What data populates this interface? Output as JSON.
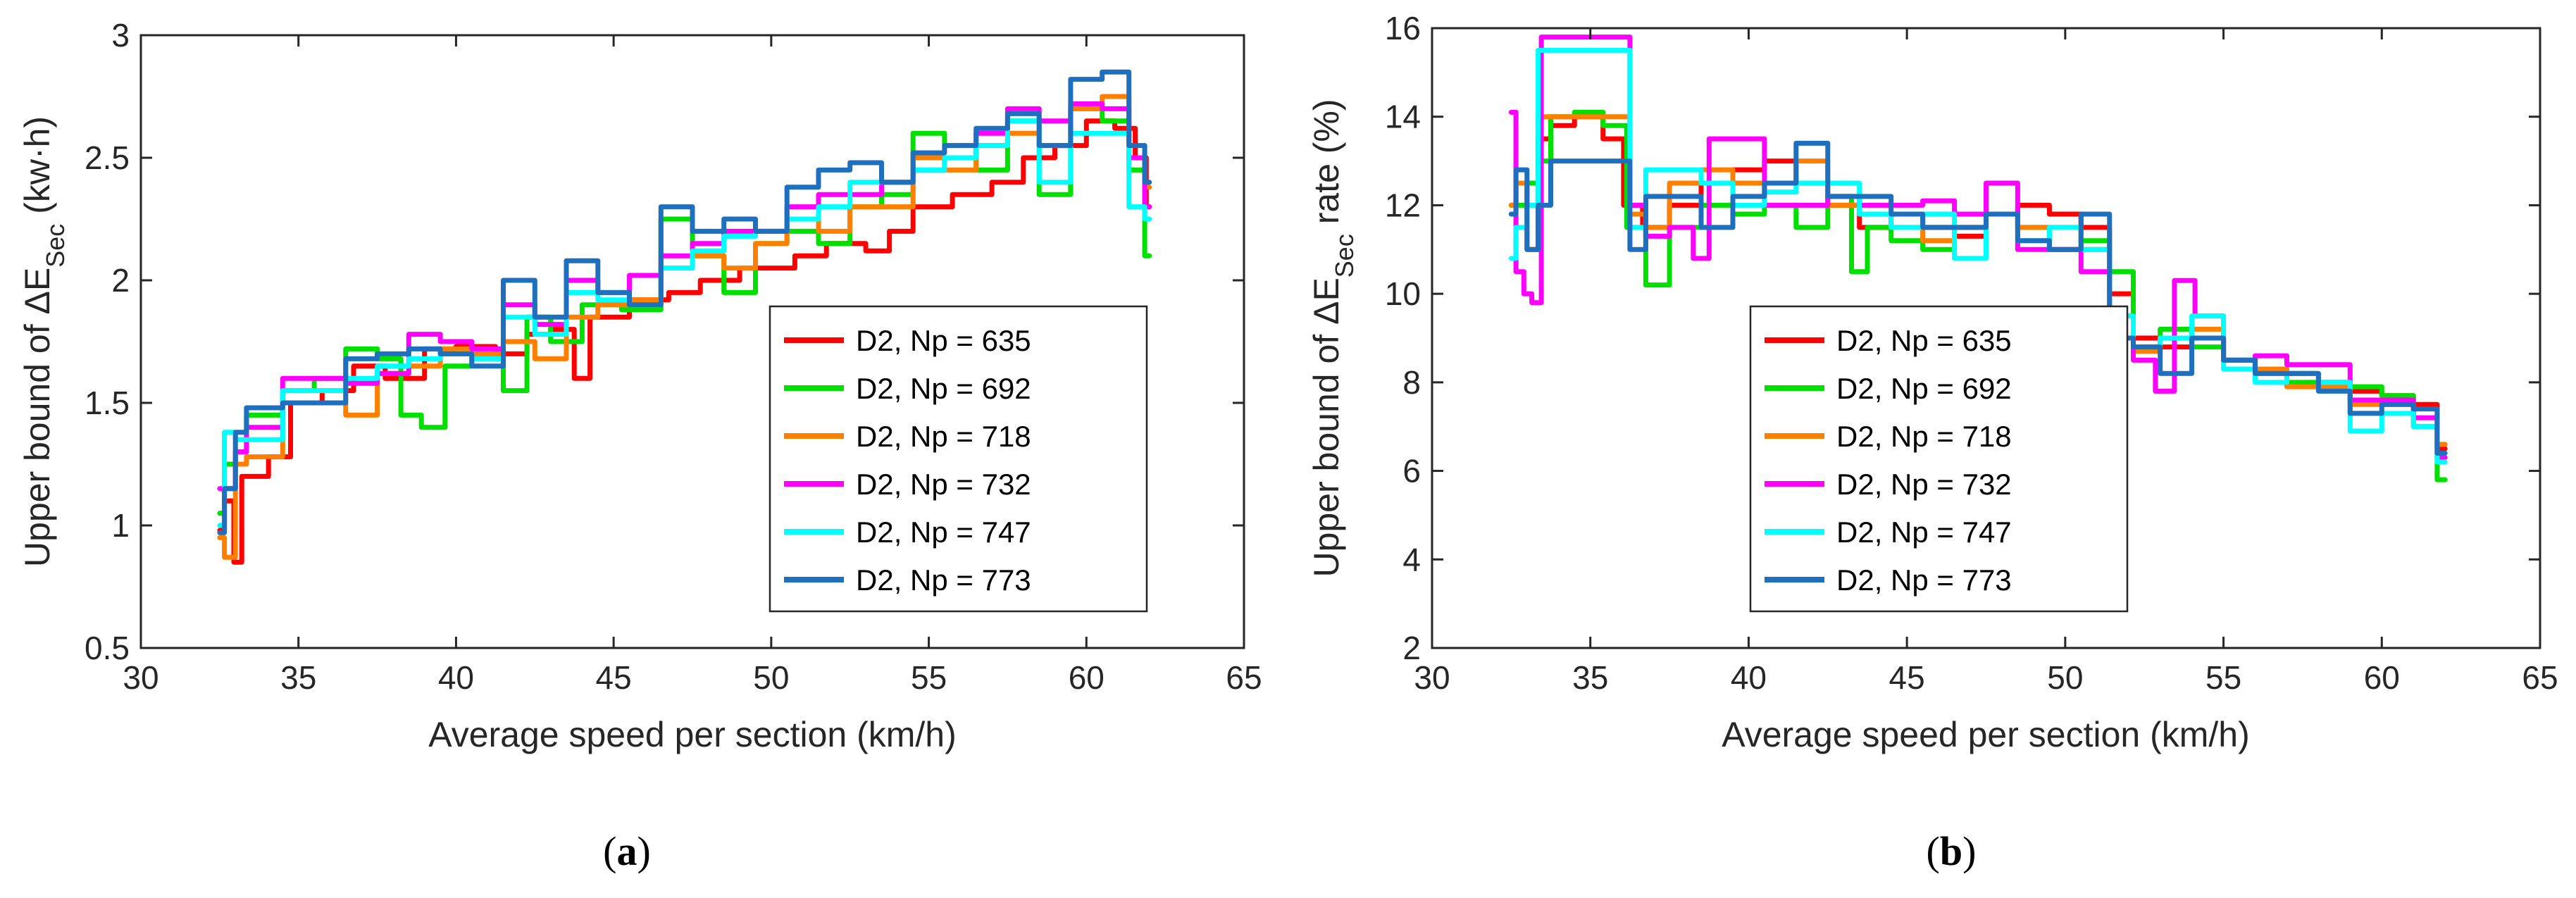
{
  "chart_data": [
    {
      "type": "line",
      "caption_paren_open": "(",
      "caption_letter": "a",
      "caption_paren_close": ")",
      "xlabel": "Average speed per section (km/h)",
      "ylabel_prefix": "Upper bound of ΔE",
      "ylabel_subscript": "Sec",
      "ylabel_suffix": " (kw·h)",
      "xlim": [
        30,
        65
      ],
      "ylim": [
        0.5,
        3
      ],
      "xticks": [
        30,
        35,
        40,
        45,
        50,
        55,
        60,
        65
      ],
      "yticks": [
        0.5,
        1,
        1.5,
        2,
        2.5,
        3
      ],
      "xtick_labels": [
        "30",
        "35",
        "40",
        "45",
        "50",
        "55",
        "60",
        "65"
      ],
      "ytick_labels": [
        "0.5",
        "1",
        "1.5",
        "2",
        "2.5",
        "3"
      ],
      "grid": false,
      "legend_position": "lower-right",
      "series": [
        {
          "name": "D2, Np = 635",
          "color": "#ff0000",
          "x": [
            32.5,
            32.8,
            33.1,
            33.3,
            33.6,
            34.5,
            35.0,
            36.5,
            37.0,
            38.5,
            39.5,
            40.5,
            42.0,
            42.5,
            43.5,
            44.0,
            44.5,
            46.5,
            47.0,
            48.5,
            49.5,
            50.5,
            51.0,
            52.5,
            53.5,
            54.0,
            55.0,
            56.5,
            57.5,
            58.5,
            59.5,
            60.5,
            61.3,
            61.8,
            62.0
          ],
          "y": [
            0.98,
            1.1,
            0.85,
            1.2,
            1.2,
            1.28,
            1.5,
            1.55,
            1.65,
            1.6,
            1.72,
            1.73,
            1.7,
            1.78,
            1.8,
            1.6,
            1.85,
            1.92,
            1.95,
            2.0,
            2.05,
            2.05,
            2.1,
            2.15,
            2.12,
            2.2,
            2.3,
            2.35,
            2.4,
            2.5,
            2.55,
            2.65,
            2.62,
            2.5,
            2.3
          ]
        },
        {
          "name": "D2, Np = 692",
          "color": "#00e000",
          "x": [
            32.5,
            32.8,
            33.2,
            33.5,
            34.0,
            35.0,
            36.0,
            37.0,
            38.0,
            38.5,
            39.3,
            40.0,
            41.0,
            42.0,
            42.5,
            43.5,
            44.5,
            46.0,
            47.0,
            48.0,
            49.0,
            50.0,
            51.0,
            52.0,
            53.0,
            54.0,
            55.0,
            56.0,
            57.0,
            58.0,
            59.0,
            60.0,
            61.0,
            61.7,
            62.0
          ],
          "y": [
            1.05,
            1.25,
            1.3,
            1.45,
            1.45,
            1.55,
            1.6,
            1.72,
            1.68,
            1.45,
            1.4,
            1.65,
            1.7,
            1.55,
            1.85,
            1.75,
            1.9,
            1.88,
            2.25,
            2.1,
            1.95,
            2.15,
            2.2,
            2.15,
            2.3,
            2.35,
            2.6,
            2.55,
            2.45,
            2.65,
            2.35,
            2.7,
            2.65,
            2.45,
            2.1
          ]
        },
        {
          "name": "D2, Np = 718",
          "color": "#ff8000",
          "x": [
            32.5,
            32.8,
            33.2,
            33.5,
            34.0,
            35.0,
            36.0,
            37.0,
            38.0,
            39.0,
            40.0,
            41.0,
            42.0,
            43.0,
            44.0,
            45.0,
            46.0,
            47.0,
            48.0,
            49.0,
            50.0,
            51.0,
            52.0,
            53.0,
            54.0,
            55.0,
            56.0,
            57.0,
            58.0,
            59.0,
            60.0,
            61.0,
            61.7,
            62.0
          ],
          "y": [
            0.95,
            0.87,
            1.25,
            1.28,
            1.28,
            1.55,
            1.55,
            1.45,
            1.62,
            1.65,
            1.72,
            1.7,
            1.75,
            1.68,
            1.85,
            1.9,
            1.92,
            2.05,
            2.1,
            2.05,
            2.15,
            2.25,
            2.2,
            2.3,
            2.3,
            2.5,
            2.45,
            2.55,
            2.6,
            2.55,
            2.7,
            2.75,
            2.5,
            2.38
          ]
        },
        {
          "name": "D2, Np = 732",
          "color": "#ff00ff",
          "x": [
            32.5,
            32.8,
            33.2,
            33.5,
            34.0,
            35.0,
            36.0,
            37.0,
            38.0,
            39.0,
            40.0,
            41.0,
            42.0,
            43.0,
            44.0,
            45.0,
            46.0,
            47.0,
            48.0,
            49.0,
            50.0,
            51.0,
            52.0,
            53.0,
            54.0,
            55.0,
            56.0,
            57.0,
            58.0,
            59.0,
            60.0,
            61.0,
            61.7,
            62.0
          ],
          "y": [
            1.15,
            1.15,
            1.3,
            1.4,
            1.4,
            1.6,
            1.6,
            1.58,
            1.62,
            1.78,
            1.75,
            1.72,
            1.9,
            1.82,
            2.0,
            1.95,
            2.02,
            2.1,
            2.15,
            2.2,
            2.2,
            2.3,
            2.35,
            2.35,
            2.4,
            2.45,
            2.5,
            2.6,
            2.7,
            2.65,
            2.72,
            2.7,
            2.5,
            2.3
          ]
        },
        {
          "name": "D2, Np = 747",
          "color": "#00ffff",
          "x": [
            32.5,
            32.8,
            33.2,
            33.5,
            34.0,
            35.0,
            36.0,
            37.0,
            38.0,
            39.0,
            40.0,
            41.0,
            42.0,
            43.0,
            44.0,
            45.0,
            46.0,
            47.0,
            48.0,
            49.0,
            50.0,
            51.0,
            52.0,
            53.0,
            54.0,
            55.0,
            56.0,
            57.0,
            58.0,
            59.0,
            60.0,
            61.0,
            61.7,
            62.0
          ],
          "y": [
            1.0,
            1.38,
            1.35,
            1.35,
            1.35,
            1.55,
            1.55,
            1.6,
            1.65,
            1.68,
            1.7,
            1.68,
            1.85,
            1.78,
            1.95,
            1.92,
            1.9,
            2.05,
            2.12,
            2.18,
            2.2,
            2.25,
            2.3,
            2.4,
            2.4,
            2.45,
            2.5,
            2.55,
            2.65,
            2.4,
            2.6,
            2.6,
            2.3,
            2.25
          ]
        },
        {
          "name": "D2, Np = 773",
          "color": "#1f6fbf",
          "x": [
            32.5,
            32.8,
            33.2,
            33.5,
            34.0,
            35.0,
            36.0,
            37.0,
            38.0,
            39.0,
            40.0,
            41.0,
            42.0,
            43.0,
            44.0,
            45.0,
            46.0,
            47.0,
            48.0,
            49.0,
            50.0,
            51.0,
            52.0,
            53.0,
            54.0,
            55.0,
            56.0,
            57.0,
            58.0,
            59.0,
            60.0,
            61.0,
            61.7,
            62.0
          ],
          "y": [
            0.97,
            1.15,
            1.38,
            1.48,
            1.48,
            1.5,
            1.5,
            1.68,
            1.7,
            1.72,
            1.7,
            1.65,
            2.0,
            1.85,
            2.08,
            1.95,
            1.9,
            2.3,
            2.2,
            2.25,
            2.2,
            2.38,
            2.45,
            2.48,
            2.4,
            2.52,
            2.55,
            2.62,
            2.68,
            2.55,
            2.82,
            2.85,
            2.55,
            2.4
          ]
        }
      ],
      "legend_color_key": {
        "D2, Np = 635": "#ff0000",
        "D2, Np = 692": "#00e000",
        "D2, Np = 718": "#ff8000",
        "D2, Np = 732": "#ff00ff",
        "D2, Np = 747": "#00ffff",
        "D2, Np = 773": "#1f6fbf"
      }
    },
    {
      "type": "line",
      "caption_paren_open": "(",
      "caption_letter": "b",
      "caption_paren_close": ")",
      "xlabel": "Average speed per section (km/h)",
      "ylabel_prefix": "Upper bound of ΔE",
      "ylabel_subscript": "Sec",
      "ylabel_suffix": " rate (%)",
      "xlim": [
        30,
        65
      ],
      "ylim": [
        2,
        16
      ],
      "xticks": [
        30,
        35,
        40,
        45,
        50,
        55,
        60,
        65
      ],
      "yticks": [
        2,
        4,
        6,
        8,
        10,
        12,
        14,
        16
      ],
      "xtick_labels": [
        "30",
        "35",
        "40",
        "45",
        "50",
        "55",
        "60",
        "65"
      ],
      "ytick_labels": [
        "2",
        "4",
        "6",
        "8",
        "10",
        "12",
        "14",
        "16"
      ],
      "grid": false,
      "legend_position": "lower-left",
      "series": [
        {
          "name": "D2, Np = 635",
          "color": "#ff0000",
          "x": [
            32.5,
            32.8,
            33.2,
            33.5,
            34.0,
            35.0,
            35.8,
            36.3,
            37.0,
            38.0,
            39.0,
            40.0,
            41.0,
            42.0,
            43.0,
            44.0,
            45.0,
            46.0,
            47.0,
            48.0,
            49.0,
            50.0,
            51.0,
            51.8,
            52.5,
            53.5,
            54.5,
            55.5,
            56.5,
            57.5,
            58.5,
            59.5,
            60.5,
            61.5,
            62.0
          ],
          "y": [
            12.0,
            12.5,
            11.0,
            13.5,
            13.8,
            14.0,
            13.5,
            12.0,
            11.5,
            12.0,
            12.5,
            12.8,
            13.0,
            12.5,
            12.0,
            11.5,
            11.8,
            11.5,
            11.3,
            11.8,
            12.0,
            11.8,
            11.5,
            10.0,
            9.0,
            8.8,
            9.0,
            8.5,
            8.3,
            8.2,
            8.0,
            7.8,
            7.7,
            7.5,
            6.5
          ]
        },
        {
          "name": "D2, Np = 692",
          "color": "#00e000",
          "x": [
            32.5,
            32.8,
            33.2,
            33.5,
            34.0,
            35.0,
            35.8,
            36.5,
            37.0,
            38.0,
            39.0,
            40.0,
            41.0,
            42.0,
            43.0,
            43.5,
            44.0,
            45.0,
            46.0,
            47.0,
            48.0,
            49.0,
            50.0,
            51.0,
            51.8,
            52.5,
            53.5,
            54.5,
            55.5,
            56.5,
            57.5,
            58.5,
            59.5,
            60.5,
            61.5,
            62.0
          ],
          "y": [
            12.0,
            12.0,
            12.5,
            13.0,
            14.0,
            14.1,
            13.8,
            11.5,
            10.2,
            11.5,
            12.0,
            11.8,
            12.0,
            11.5,
            12.2,
            10.5,
            11.5,
            11.2,
            11.0,
            11.5,
            11.8,
            11.5,
            11.0,
            11.2,
            10.5,
            8.8,
            9.2,
            8.8,
            8.5,
            8.2,
            8.0,
            8.0,
            7.9,
            7.7,
            7.0,
            5.8
          ]
        },
        {
          "name": "D2, Np = 718",
          "color": "#ff8000",
          "x": [
            32.5,
            32.8,
            33.2,
            33.5,
            34.0,
            35.0,
            36.0,
            36.5,
            37.0,
            38.0,
            39.0,
            40.0,
            41.0,
            42.0,
            43.0,
            44.0,
            45.0,
            46.0,
            47.0,
            48.0,
            49.0,
            50.0,
            51.0,
            51.8,
            52.5,
            53.5,
            54.5,
            55.5,
            56.5,
            57.5,
            58.5,
            59.5,
            60.5,
            61.5,
            62.0
          ],
          "y": [
            12.0,
            12.5,
            12.0,
            14.0,
            14.0,
            14.0,
            14.0,
            11.8,
            11.5,
            12.5,
            12.8,
            12.5,
            12.5,
            13.0,
            12.0,
            11.8,
            11.5,
            11.2,
            11.5,
            11.8,
            11.5,
            11.5,
            11.0,
            9.5,
            8.7,
            9.0,
            9.2,
            8.5,
            8.3,
            7.9,
            7.9,
            7.5,
            7.5,
            7.0,
            6.6
          ]
        },
        {
          "name": "D2, Np = 732",
          "color": "#ff00ff",
          "x": [
            32.5,
            32.8,
            33.0,
            33.3,
            33.6,
            34.0,
            35.0,
            36.0,
            36.5,
            37.0,
            38.0,
            38.5,
            39.0,
            40.0,
            41.0,
            42.0,
            43.0,
            44.0,
            45.0,
            46.0,
            47.0,
            48.0,
            49.0,
            50.0,
            51.0,
            51.8,
            52.5,
            53.2,
            53.7,
            54.5,
            55.5,
            56.5,
            57.5,
            58.5,
            59.5,
            60.5,
            61.5,
            62.0
          ],
          "y": [
            14.1,
            10.5,
            10.0,
            9.8,
            15.8,
            15.8,
            15.8,
            15.8,
            12.0,
            11.3,
            11.5,
            10.8,
            13.5,
            13.5,
            12.0,
            12.0,
            12.2,
            12.0,
            12.0,
            12.1,
            11.8,
            12.5,
            11.0,
            11.0,
            10.5,
            9.0,
            8.5,
            7.8,
            10.3,
            9.5,
            8.5,
            8.6,
            8.4,
            8.4,
            7.6,
            7.6,
            7.2,
            6.3
          ]
        },
        {
          "name": "D2, Np = 747",
          "color": "#00ffff",
          "x": [
            32.5,
            32.8,
            33.2,
            33.5,
            34.0,
            35.0,
            36.0,
            36.5,
            37.0,
            38.0,
            39.0,
            40.0,
            41.0,
            42.0,
            43.0,
            44.0,
            45.0,
            46.0,
            47.0,
            48.0,
            49.0,
            50.0,
            51.0,
            51.8,
            52.5,
            53.5,
            54.5,
            55.5,
            56.5,
            57.5,
            58.5,
            59.5,
            60.5,
            61.5,
            62.0
          ],
          "y": [
            10.8,
            11.5,
            12.0,
            15.5,
            15.5,
            15.5,
            15.5,
            11.5,
            12.8,
            12.8,
            12.5,
            12.0,
            12.3,
            12.5,
            12.5,
            11.8,
            11.5,
            11.8,
            10.8,
            11.8,
            11.2,
            11.5,
            11.0,
            9.5,
            8.8,
            9.0,
            9.5,
            8.3,
            8.0,
            8.2,
            8.0,
            6.9,
            7.3,
            7.0,
            6.2
          ]
        },
        {
          "name": "D2, Np = 773",
          "color": "#1f6fbf",
          "x": [
            32.5,
            32.8,
            33.2,
            33.5,
            34.0,
            35.0,
            36.0,
            36.5,
            37.0,
            38.0,
            39.0,
            40.0,
            41.0,
            42.0,
            43.0,
            44.0,
            45.0,
            46.0,
            47.0,
            48.0,
            49.0,
            50.0,
            51.0,
            51.8,
            52.5,
            53.5,
            54.5,
            55.5,
            56.5,
            57.5,
            58.5,
            59.5,
            60.5,
            61.5,
            62.0
          ],
          "y": [
            11.8,
            12.8,
            11.0,
            12.0,
            13.0,
            13.0,
            13.0,
            11.0,
            12.2,
            12.2,
            11.5,
            12.2,
            12.5,
            13.4,
            12.2,
            12.2,
            11.8,
            11.5,
            11.5,
            11.8,
            11.2,
            11.0,
            11.8,
            9.0,
            8.8,
            8.2,
            9.0,
            8.5,
            8.2,
            8.2,
            7.8,
            7.3,
            7.5,
            7.4,
            6.4
          ]
        }
      ]
    }
  ]
}
